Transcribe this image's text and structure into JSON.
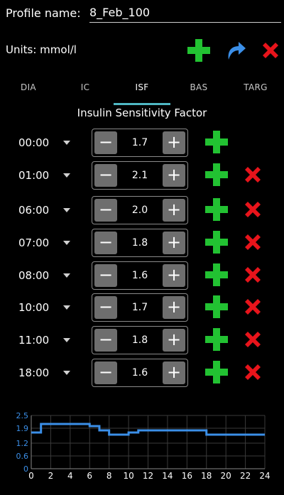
{
  "header": {
    "profile_label": "Profile name:",
    "profile_value": "8_Feb_100",
    "units_label": "Units: mmol/l",
    "icons": {
      "add": "plus-icon",
      "redo": "redo-arrow-icon",
      "delete": "x-icon"
    }
  },
  "tabs": [
    {
      "label": "DIA",
      "active": false
    },
    {
      "label": "IC",
      "active": false
    },
    {
      "label": "ISF",
      "active": true
    },
    {
      "label": "BAS",
      "active": false
    },
    {
      "label": "TARG",
      "active": false
    }
  ],
  "section_title": "Insulin Sensitivity Factor",
  "rows": [
    {
      "time": "00:00",
      "value": "1.7",
      "deletable": false
    },
    {
      "time": "01:00",
      "value": "2.1",
      "deletable": true
    },
    {
      "time": "06:00",
      "value": "2.0",
      "deletable": true
    },
    {
      "time": "07:00",
      "value": "1.8",
      "deletable": true
    },
    {
      "time": "08:00",
      "value": "1.6",
      "deletable": true
    },
    {
      "time": "10:00",
      "value": "1.7",
      "deletable": true
    },
    {
      "time": "11:00",
      "value": "1.8",
      "deletable": true
    },
    {
      "time": "18:00",
      "value": "1.6",
      "deletable": true
    }
  ],
  "stepper_labels": {
    "minus": "−",
    "plus": "+"
  },
  "colors": {
    "green": "#22c232",
    "red": "#e8141b",
    "blue": "#3b8fe8",
    "accent": "#4fb8c4"
  },
  "chart_data": {
    "type": "line",
    "step": true,
    "x": [
      0,
      1,
      6,
      7,
      8,
      10,
      11,
      18,
      24
    ],
    "y": [
      1.7,
      2.1,
      2.0,
      1.8,
      1.6,
      1.7,
      1.8,
      1.6,
      1.6
    ],
    "xlim": [
      0,
      24
    ],
    "ylim": [
      0,
      2.5
    ],
    "x_ticks": [
      "0",
      "2",
      "4",
      "6",
      "8",
      "10",
      "12",
      "14",
      "16",
      "18",
      "20",
      "22",
      "24"
    ],
    "y_ticks": [
      "0",
      "0.6",
      "1.2",
      "1.9",
      "2.5"
    ],
    "grid": true
  }
}
